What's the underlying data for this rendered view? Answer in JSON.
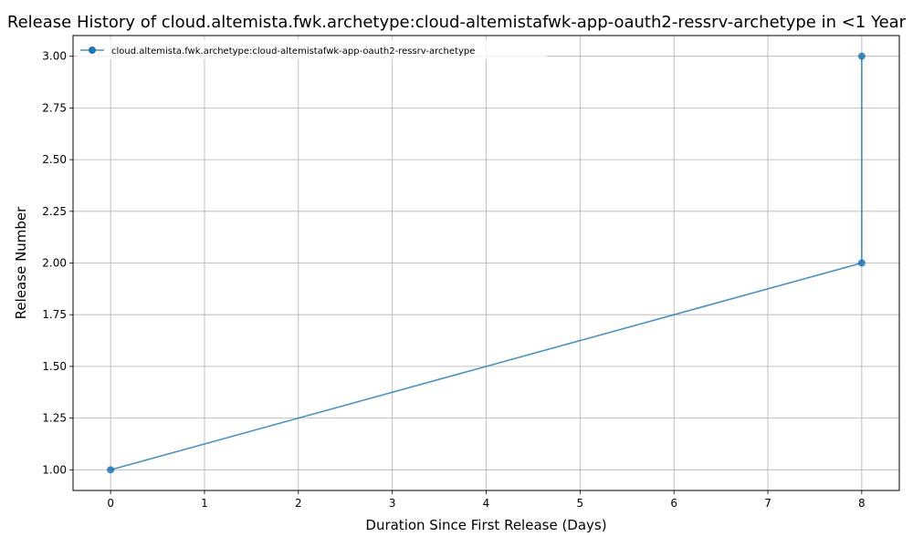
{
  "chart_data": {
    "type": "line",
    "title": "Release History of cloud.altemista.fwk.archetype:cloud-altemistafwk-app-oauth2-ressrv-archetype in <1 Year",
    "xlabel": "Duration Since First Release (Days)",
    "ylabel": "Release Number",
    "xlim": [
      -0.4,
      8.4
    ],
    "ylim": [
      0.9,
      3.1
    ],
    "x_ticks": [
      0,
      1,
      2,
      3,
      4,
      5,
      6,
      7,
      8
    ],
    "y_ticks": [
      1.0,
      1.25,
      1.5,
      1.75,
      2.0,
      2.25,
      2.5,
      2.75,
      3.0
    ],
    "y_tick_labels": [
      "1.00",
      "1.25",
      "1.50",
      "1.75",
      "2.00",
      "2.25",
      "2.50",
      "2.75",
      "3.00"
    ],
    "grid": true,
    "legend_position": "top-left",
    "series": [
      {
        "name": "cloud.altemista.fwk.archetype:cloud-altemistafwk-app-oauth2-ressrv-archetype",
        "color": "#1f77b4",
        "x": [
          0,
          8,
          8
        ],
        "y": [
          1,
          2,
          3
        ]
      }
    ]
  }
}
